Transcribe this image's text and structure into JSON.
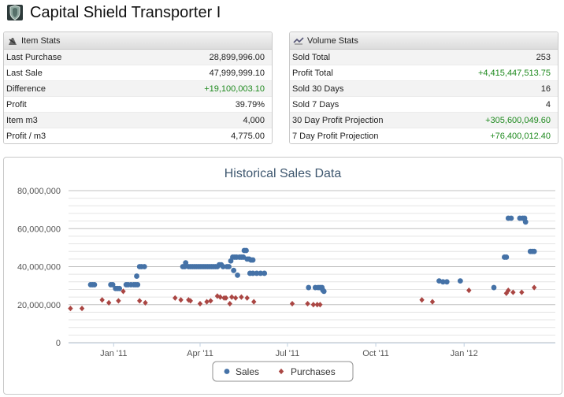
{
  "page": {
    "title": "Capital Shield Transporter I",
    "icon": "shield-item-icon"
  },
  "item_stats": {
    "header": "Item Stats",
    "rows": [
      {
        "label": "Last Purchase",
        "value": "28,899,996.00",
        "positive": false
      },
      {
        "label": "Last Sale",
        "value": "47,999,999.10",
        "positive": false
      },
      {
        "label": "Difference",
        "value": "+19,100,003.10",
        "positive": true
      },
      {
        "label": "Profit",
        "value": "39.79%",
        "positive": false
      },
      {
        "label": "Item m3",
        "value": "4,000",
        "positive": false
      },
      {
        "label": "Profit / m3",
        "value": "4,775.00",
        "positive": false
      }
    ]
  },
  "volume_stats": {
    "header": "Volume Stats",
    "rows": [
      {
        "label": "Sold Total",
        "value": "253",
        "positive": false
      },
      {
        "label": "Profit Total",
        "value": "+4,415,447,513.75",
        "positive": true
      },
      {
        "label": "Sold 30 Days",
        "value": "16",
        "positive": false
      },
      {
        "label": "Sold 7 Days",
        "value": "4",
        "positive": false
      },
      {
        "label": "30 Day Profit Projection",
        "value": "+305,600,049.60",
        "positive": true
      },
      {
        "label": "7 Day Profit Projection",
        "value": "+76,400,012.40",
        "positive": true
      }
    ]
  },
  "chart_data": {
    "type": "scatter",
    "title": "Historical Sales Data",
    "xlabel": "",
    "ylabel": "",
    "x_ticks": [
      "Jan '11",
      "Apr '11",
      "Jul '11",
      "Oct '11",
      "Jan '12"
    ],
    "xlim": [
      "2010-11-15",
      "2012-04-05"
    ],
    "ylim": [
      0,
      80000000
    ],
    "y_ticks": [
      0,
      20000000,
      40000000,
      60000000,
      80000000
    ],
    "y_tick_labels": [
      "0",
      "20,000,000",
      "40,000,000",
      "60,000,000",
      "80,000,000"
    ],
    "grid": true,
    "legend": "bottom-center",
    "colors": {
      "sales": "#4572a7",
      "purchases": "#aa4643"
    },
    "series": [
      {
        "name": "Sales",
        "marker": "circle",
        "points": [
          [
            "2010-12-08",
            30500000
          ],
          [
            "2010-12-10",
            30500000
          ],
          [
            "2010-12-12",
            30500000
          ],
          [
            "2010-12-29",
            30500000
          ],
          [
            "2010-12-31",
            30500000
          ],
          [
            "2011-01-03",
            28500000
          ],
          [
            "2011-01-05",
            28500000
          ],
          [
            "2011-01-07",
            28500000
          ],
          [
            "2011-01-14",
            30500000
          ],
          [
            "2011-01-16",
            30500000
          ],
          [
            "2011-01-19",
            30500000
          ],
          [
            "2011-01-22",
            30500000
          ],
          [
            "2011-01-24",
            30500000
          ],
          [
            "2011-01-26",
            30500000
          ],
          [
            "2011-01-25",
            35000000
          ],
          [
            "2011-01-28",
            40000000
          ],
          [
            "2011-01-30",
            40000000
          ],
          [
            "2011-02-02",
            40000000
          ],
          [
            "2011-03-14",
            40000000
          ],
          [
            "2011-03-16",
            40000000
          ],
          [
            "2011-03-17",
            42000000
          ],
          [
            "2011-03-20",
            40000000
          ],
          [
            "2011-03-22",
            40000000
          ],
          [
            "2011-03-24",
            40000000
          ],
          [
            "2011-03-26",
            40000000
          ],
          [
            "2011-03-28",
            40000000
          ],
          [
            "2011-03-30",
            40000000
          ],
          [
            "2011-04-01",
            40000000
          ],
          [
            "2011-04-03",
            40000000
          ],
          [
            "2011-04-05",
            40000000
          ],
          [
            "2011-04-07",
            40000000
          ],
          [
            "2011-04-09",
            40000000
          ],
          [
            "2011-04-11",
            40000000
          ],
          [
            "2011-04-13",
            40000000
          ],
          [
            "2011-04-15",
            40000000
          ],
          [
            "2011-04-17",
            40000000
          ],
          [
            "2011-04-19",
            40000000
          ],
          [
            "2011-04-21",
            41000000
          ],
          [
            "2011-04-23",
            41000000
          ],
          [
            "2011-04-25",
            40000000
          ],
          [
            "2011-04-29",
            40000000
          ],
          [
            "2011-05-01",
            40000000
          ],
          [
            "2011-05-03",
            43000000
          ],
          [
            "2011-05-05",
            45000000
          ],
          [
            "2011-05-06",
            38000000
          ],
          [
            "2011-05-07",
            45000000
          ],
          [
            "2011-05-09",
            45000000
          ],
          [
            "2011-05-10",
            35500000
          ],
          [
            "2011-05-12",
            45000000
          ],
          [
            "2011-05-14",
            45000000
          ],
          [
            "2011-05-16",
            45000000
          ],
          [
            "2011-05-17",
            48500000
          ],
          [
            "2011-05-19",
            48500000
          ],
          [
            "2011-05-20",
            44000000
          ],
          [
            "2011-05-22",
            44000000
          ],
          [
            "2011-05-24",
            43500000
          ],
          [
            "2011-05-26",
            43500000
          ],
          [
            "2011-05-23",
            36500000
          ],
          [
            "2011-05-26",
            36500000
          ],
          [
            "2011-05-30",
            36500000
          ],
          [
            "2011-06-03",
            36500000
          ],
          [
            "2011-06-07",
            36500000
          ],
          [
            "2011-07-23",
            29000000
          ],
          [
            "2011-07-30",
            29000000
          ],
          [
            "2011-08-02",
            29000000
          ],
          [
            "2011-08-04",
            29000000
          ],
          [
            "2011-08-06",
            29000000
          ],
          [
            "2011-08-07",
            27500000
          ],
          [
            "2011-08-08",
            27000000
          ],
          [
            "2011-12-06",
            32500000
          ],
          [
            "2011-12-10",
            32000000
          ],
          [
            "2011-12-14",
            32000000
          ],
          [
            "2011-12-28",
            32500000
          ],
          [
            "2012-02-01",
            29000000
          ],
          [
            "2012-02-12",
            45000000
          ],
          [
            "2012-02-14",
            45000000
          ],
          [
            "2012-02-16",
            65500000
          ],
          [
            "2012-02-19",
            65500000
          ],
          [
            "2012-02-28",
            65500000
          ],
          [
            "2012-03-02",
            65500000
          ],
          [
            "2012-03-04",
            65500000
          ],
          [
            "2012-03-05",
            63500000
          ],
          [
            "2012-03-10",
            48000000
          ],
          [
            "2012-03-12",
            48000000
          ],
          [
            "2012-03-14",
            48000000
          ]
        ]
      },
      {
        "name": "Purchases",
        "marker": "diamond",
        "points": [
          [
            "2010-11-17",
            18000000
          ],
          [
            "2010-11-29",
            18000000
          ],
          [
            "2010-12-20",
            22500000
          ],
          [
            "2010-12-27",
            21000000
          ],
          [
            "2011-01-06",
            22000000
          ],
          [
            "2011-01-11",
            27000000
          ],
          [
            "2011-01-28",
            22000000
          ],
          [
            "2011-02-03",
            21000000
          ],
          [
            "2011-03-06",
            23500000
          ],
          [
            "2011-03-12",
            22500000
          ],
          [
            "2011-03-20",
            22500000
          ],
          [
            "2011-03-22",
            22000000
          ],
          [
            "2011-04-01",
            20500000
          ],
          [
            "2011-04-08",
            21500000
          ],
          [
            "2011-04-12",
            22000000
          ],
          [
            "2011-04-19",
            24500000
          ],
          [
            "2011-04-22",
            24000000
          ],
          [
            "2011-04-26",
            23500000
          ],
          [
            "2011-04-28",
            23500000
          ],
          [
            "2011-05-02",
            20500000
          ],
          [
            "2011-05-04",
            24000000
          ],
          [
            "2011-05-08",
            23500000
          ],
          [
            "2011-05-14",
            24000000
          ],
          [
            "2011-05-20",
            23500000
          ],
          [
            "2011-05-27",
            21500000
          ],
          [
            "2011-07-06",
            20500000
          ],
          [
            "2011-07-22",
            20500000
          ],
          [
            "2011-07-28",
            20000000
          ],
          [
            "2011-08-01",
            20000000
          ],
          [
            "2011-08-04",
            20000000
          ],
          [
            "2011-11-18",
            22500000
          ],
          [
            "2011-11-29",
            21500000
          ],
          [
            "2012-01-06",
            27500000
          ],
          [
            "2012-02-14",
            26000000
          ],
          [
            "2012-02-16",
            27500000
          ],
          [
            "2012-02-21",
            26500000
          ],
          [
            "2012-03-01",
            26500000
          ],
          [
            "2012-03-14",
            29000000
          ]
        ]
      }
    ]
  }
}
